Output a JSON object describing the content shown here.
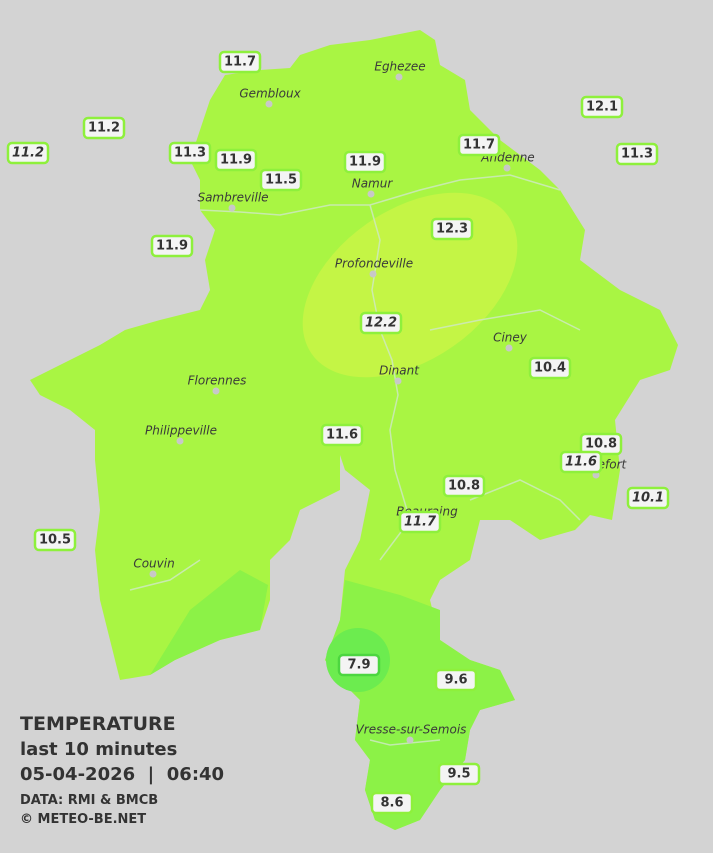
{
  "title": "TEMPERATURE",
  "subtitle": "last 10 minutes",
  "datetime": "05-04-2026  |  06:40",
  "data_credit": "DATA: RMI & BMCB",
  "copyright": "© METEO-BE.NET",
  "cities": [
    "Eghezee",
    "Gembloux",
    "Andenne",
    "Namur",
    "Sambreville",
    "Profondeville",
    "Ciney",
    "Dinant",
    "Florennes",
    "Philippeville",
    "Rochefort",
    "Beauraing",
    "Couvin",
    "Vresse-sur-Semois"
  ],
  "stations": [
    {
      "value": 11.7,
      "italic": false
    },
    {
      "value": 11.2,
      "italic": false
    },
    {
      "value": 11.2,
      "italic": true
    },
    {
      "value": 11.3,
      "italic": false
    },
    {
      "value": 11.9,
      "italic": false
    },
    {
      "value": 11.5,
      "italic": false
    },
    {
      "value": 11.9,
      "italic": false
    },
    {
      "value": 11.7,
      "italic": false
    },
    {
      "value": 12.1,
      "italic": false
    },
    {
      "value": 11.3,
      "italic": false
    },
    {
      "value": 11.9,
      "italic": false
    },
    {
      "value": 12.3,
      "italic": false
    },
    {
      "value": 12.2,
      "italic": true
    },
    {
      "value": 10.4,
      "italic": false
    },
    {
      "value": 11.6,
      "italic": false
    },
    {
      "value": 10.8,
      "italic": false
    },
    {
      "value": 11.6,
      "italic": true
    },
    {
      "value": 10.8,
      "italic": false
    },
    {
      "value": 10.1,
      "italic": true
    },
    {
      "value": 11.7,
      "italic": true
    },
    {
      "value": 10.5,
      "italic": false
    },
    {
      "value": 7.9,
      "italic": false
    },
    {
      "value": 9.6,
      "italic": false
    },
    {
      "value": 9.5,
      "italic": false
    },
    {
      "value": 8.6,
      "italic": false
    }
  ]
}
